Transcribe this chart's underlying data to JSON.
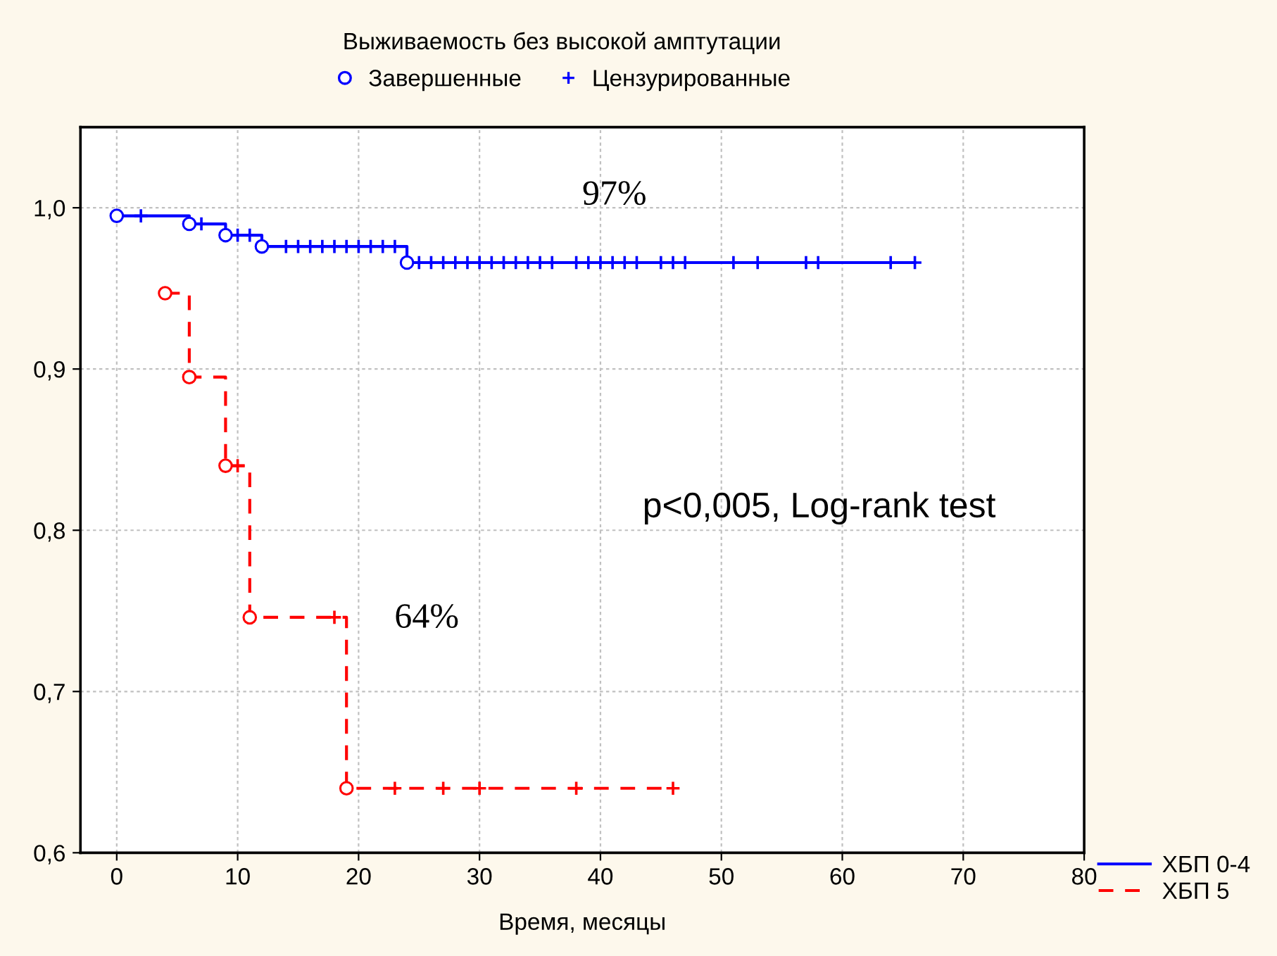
{
  "chart_data": {
    "type": "step",
    "title": "Выживаемость без высокой амптутации",
    "xlabel": "Время, месяцы",
    "xlim": [
      -3,
      80
    ],
    "xticks": [
      0,
      10,
      20,
      30,
      40,
      50,
      60,
      70,
      80
    ],
    "ylim": [
      0.6,
      1.05
    ],
    "yticks": [
      {
        "value": 0.6,
        "label": "0,6"
      },
      {
        "value": 0.7,
        "label": "0,7"
      },
      {
        "value": 0.8,
        "label": "0,8"
      },
      {
        "value": 0.9,
        "label": "0,9"
      },
      {
        "value": 1.0,
        "label": "1,0"
      }
    ],
    "grid": true,
    "legend": "top",
    "annotations": [
      "97%",
      "64%",
      "p<0,005, Log-rank test"
    ],
    "series": [
      {
        "name": "ХБП 0-4",
        "color": "#0000ff",
        "line_style": "solid",
        "x": [
          0,
          6,
          9,
          12,
          24,
          66
        ],
        "values": [
          0.995,
          0.99,
          0.983,
          0.976,
          0.966,
          0.966
        ]
      },
      {
        "name": "ХБП 5",
        "color": "#ff0000",
        "line_style": "dashed",
        "x": [
          4,
          6,
          9,
          11,
          19,
          46
        ],
        "values": [
          0.947,
          0.895,
          0.84,
          0.746,
          0.64,
          0.64
        ]
      },
      {
        "name": "Завершенные",
        "type": "scatter",
        "marker": "circle",
        "color": "#0000ff",
        "x": [
          0,
          6,
          9,
          12,
          24,
          4,
          6,
          9,
          11,
          19
        ],
        "values": [
          0.995,
          0.99,
          0.983,
          0.976,
          0.966,
          0.947,
          0.895,
          0.84,
          0.746,
          0.64
        ],
        "colors": [
          "#0000ff",
          "#0000ff",
          "#0000ff",
          "#0000ff",
          "#0000ff",
          "#ff0000",
          "#ff0000",
          "#ff0000",
          "#ff0000",
          "#ff0000"
        ]
      },
      {
        "name": "Цензурированные",
        "type": "scatter",
        "marker": "cross",
        "color": "#0000ff",
        "x": [
          2,
          7,
          10,
          11,
          14,
          15,
          16,
          17,
          18,
          19,
          20,
          21,
          22,
          23,
          25,
          26,
          27,
          28,
          29,
          30,
          31,
          32,
          33,
          34,
          35,
          36,
          38,
          39,
          40,
          41,
          42,
          43,
          45,
          46,
          47,
          51,
          53,
          57,
          58,
          64,
          66,
          10,
          18,
          23,
          27,
          30,
          38,
          46
        ],
        "values": [
          0.995,
          0.99,
          0.983,
          0.983,
          0.976,
          0.976,
          0.976,
          0.976,
          0.976,
          0.976,
          0.976,
          0.976,
          0.976,
          0.976,
          0.966,
          0.966,
          0.966,
          0.966,
          0.966,
          0.966,
          0.966,
          0.966,
          0.966,
          0.966,
          0.966,
          0.966,
          0.966,
          0.966,
          0.966,
          0.966,
          0.966,
          0.966,
          0.966,
          0.966,
          0.966,
          0.966,
          0.966,
          0.966,
          0.966,
          0.966,
          0.966,
          0.84,
          0.746,
          0.64,
          0.64,
          0.64,
          0.64,
          0.64
        ],
        "colors": [
          "#0000ff",
          "#0000ff",
          "#0000ff",
          "#0000ff",
          "#0000ff",
          "#0000ff",
          "#0000ff",
          "#0000ff",
          "#0000ff",
          "#0000ff",
          "#0000ff",
          "#0000ff",
          "#0000ff",
          "#0000ff",
          "#0000ff",
          "#0000ff",
          "#0000ff",
          "#0000ff",
          "#0000ff",
          "#0000ff",
          "#0000ff",
          "#0000ff",
          "#0000ff",
          "#0000ff",
          "#0000ff",
          "#0000ff",
          "#0000ff",
          "#0000ff",
          "#0000ff",
          "#0000ff",
          "#0000ff",
          "#0000ff",
          "#0000ff",
          "#0000ff",
          "#0000ff",
          "#0000ff",
          "#0000ff",
          "#0000ff",
          "#0000ff",
          "#0000ff",
          "#0000ff",
          "#ff0000",
          "#ff0000",
          "#ff0000",
          "#ff0000",
          "#ff0000",
          "#ff0000",
          "#ff0000"
        ]
      }
    ]
  }
}
